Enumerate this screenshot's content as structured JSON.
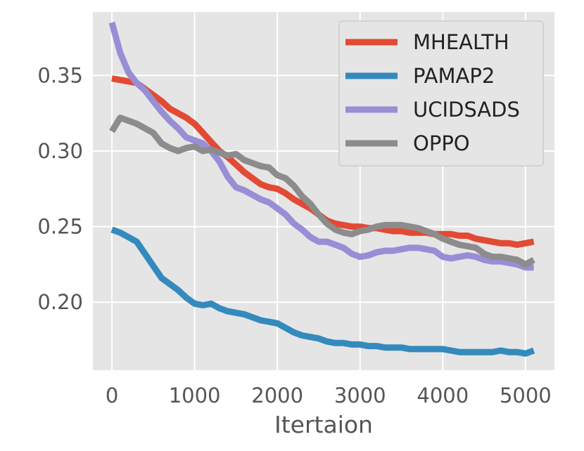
{
  "chart_data": {
    "type": "line",
    "title": "",
    "xlabel": "Itertaion",
    "ylabel": "",
    "xlim": [
      -230,
      5350
    ],
    "ylim": [
      0.155,
      0.392
    ],
    "xticks": [
      {
        "value": 0,
        "label": "0"
      },
      {
        "value": 1000,
        "label": "1000"
      },
      {
        "value": 2000,
        "label": "2000"
      },
      {
        "value": 3000,
        "label": "3000"
      },
      {
        "value": 4000,
        "label": "4000"
      },
      {
        "value": 5000,
        "label": "5000"
      }
    ],
    "yticks": [
      {
        "value": 0.2,
        "label": "0.20"
      },
      {
        "value": 0.25,
        "label": "0.25"
      },
      {
        "value": 0.3,
        "label": "0.30"
      },
      {
        "value": 0.35,
        "label": "0.35"
      }
    ],
    "grid": true,
    "legend_position": "top-right",
    "colors": {
      "background": "#e5e5e5",
      "grid": "#ffffff",
      "tick_text": "#555555"
    },
    "series": [
      {
        "name": "MHEALTH",
        "color": "#e24a33",
        "x": [
          0,
          100,
          200,
          300,
          400,
          500,
          600,
          700,
          800,
          900,
          1000,
          1100,
          1200,
          1300,
          1400,
          1500,
          1600,
          1700,
          1800,
          1900,
          2000,
          2100,
          2200,
          2300,
          2400,
          2500,
          2600,
          2700,
          2800,
          2900,
          3000,
          3100,
          3200,
          3300,
          3400,
          3500,
          3600,
          3700,
          3800,
          3900,
          4000,
          4100,
          4200,
          4300,
          4400,
          4500,
          4600,
          4700,
          4800,
          4900,
          5000,
          5100
        ],
        "y": [
          0.348,
          0.347,
          0.346,
          0.345,
          0.341,
          0.337,
          0.333,
          0.328,
          0.325,
          0.322,
          0.318,
          0.312,
          0.306,
          0.3,
          0.296,
          0.291,
          0.286,
          0.282,
          0.278,
          0.276,
          0.275,
          0.272,
          0.268,
          0.265,
          0.262,
          0.258,
          0.254,
          0.252,
          0.251,
          0.25,
          0.25,
          0.249,
          0.249,
          0.248,
          0.247,
          0.247,
          0.246,
          0.246,
          0.246,
          0.245,
          0.245,
          0.245,
          0.244,
          0.244,
          0.242,
          0.241,
          0.24,
          0.239,
          0.239,
          0.238,
          0.239,
          0.24
        ]
      },
      {
        "name": "PAMAP2",
        "color": "#348abd",
        "x": [
          0,
          100,
          200,
          300,
          400,
          500,
          600,
          700,
          800,
          900,
          1000,
          1100,
          1200,
          1300,
          1400,
          1500,
          1600,
          1700,
          1800,
          1900,
          2000,
          2100,
          2200,
          2300,
          2400,
          2500,
          2600,
          2700,
          2800,
          2900,
          3000,
          3100,
          3200,
          3300,
          3400,
          3500,
          3600,
          3700,
          3800,
          3900,
          4000,
          4100,
          4200,
          4300,
          4400,
          4500,
          4600,
          4700,
          4800,
          4900,
          5000,
          5100
        ],
        "y": [
          0.248,
          0.246,
          0.243,
          0.24,
          0.232,
          0.224,
          0.216,
          0.212,
          0.208,
          0.203,
          0.199,
          0.198,
          0.199,
          0.196,
          0.194,
          0.193,
          0.192,
          0.19,
          0.188,
          0.187,
          0.186,
          0.183,
          0.18,
          0.178,
          0.177,
          0.176,
          0.174,
          0.173,
          0.173,
          0.172,
          0.172,
          0.171,
          0.171,
          0.17,
          0.17,
          0.17,
          0.169,
          0.169,
          0.169,
          0.169,
          0.169,
          0.168,
          0.167,
          0.167,
          0.167,
          0.167,
          0.167,
          0.168,
          0.167,
          0.167,
          0.166,
          0.168
        ]
      },
      {
        "name": "UCIDSADS",
        "color": "#988ed5",
        "x": [
          0,
          100,
          200,
          300,
          400,
          500,
          600,
          700,
          800,
          900,
          1000,
          1100,
          1200,
          1300,
          1400,
          1500,
          1600,
          1700,
          1800,
          1900,
          2000,
          2100,
          2200,
          2300,
          2400,
          2500,
          2600,
          2700,
          2800,
          2900,
          3000,
          3100,
          3200,
          3300,
          3400,
          3500,
          3600,
          3700,
          3800,
          3900,
          4000,
          4100,
          4200,
          4300,
          4400,
          4500,
          4600,
          4700,
          4800,
          4900,
          5000,
          5100
        ],
        "y": [
          0.385,
          0.365,
          0.352,
          0.345,
          0.34,
          0.333,
          0.326,
          0.32,
          0.315,
          0.309,
          0.307,
          0.305,
          0.3,
          0.293,
          0.283,
          0.276,
          0.274,
          0.271,
          0.268,
          0.266,
          0.262,
          0.258,
          0.252,
          0.248,
          0.243,
          0.24,
          0.24,
          0.238,
          0.236,
          0.232,
          0.23,
          0.231,
          0.233,
          0.234,
          0.234,
          0.235,
          0.236,
          0.236,
          0.235,
          0.234,
          0.23,
          0.229,
          0.23,
          0.231,
          0.23,
          0.228,
          0.227,
          0.227,
          0.226,
          0.225,
          0.223,
          0.223
        ]
      },
      {
        "name": "OPPO",
        "color": "#8c8c8c",
        "x": [
          0,
          100,
          200,
          300,
          400,
          500,
          600,
          700,
          800,
          900,
          1000,
          1100,
          1200,
          1300,
          1400,
          1500,
          1600,
          1700,
          1800,
          1900,
          2000,
          2100,
          2200,
          2300,
          2400,
          2500,
          2600,
          2700,
          2800,
          2900,
          3000,
          3100,
          3200,
          3300,
          3400,
          3500,
          3600,
          3700,
          3800,
          3900,
          4000,
          4100,
          4200,
          4300,
          4400,
          4500,
          4600,
          4700,
          4800,
          4900,
          5000,
          5100
        ],
        "y": [
          0.313,
          0.322,
          0.32,
          0.318,
          0.315,
          0.312,
          0.305,
          0.302,
          0.3,
          0.302,
          0.303,
          0.3,
          0.301,
          0.299,
          0.297,
          0.298,
          0.294,
          0.292,
          0.29,
          0.289,
          0.284,
          0.282,
          0.277,
          0.27,
          0.265,
          0.258,
          0.252,
          0.248,
          0.246,
          0.245,
          0.247,
          0.248,
          0.25,
          0.251,
          0.251,
          0.251,
          0.25,
          0.249,
          0.247,
          0.245,
          0.242,
          0.24,
          0.238,
          0.237,
          0.236,
          0.232,
          0.23,
          0.23,
          0.229,
          0.228,
          0.225,
          0.228
        ]
      }
    ]
  }
}
